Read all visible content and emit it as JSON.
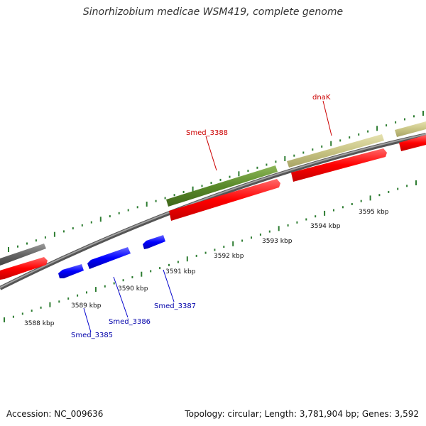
{
  "title": "Sinorhizobium medicae WSM419, complete genome",
  "footer": {
    "accession": "Accession: NC_009636",
    "topology": "Topology: circular; Length: 3,781,904 bp; Genes: 3,592"
  },
  "colors": {
    "backbone": "#777777",
    "tick": "#2e7d32",
    "cds_red": "#ff0000",
    "cds_blue": "#0000ff",
    "gene_olive": "#5a8a2a",
    "gene_khaki": "#c8c484",
    "gene_gray": "#666666",
    "label_red": "#cc0000",
    "label_blue": "#0000aa"
  },
  "kbp_labels": [
    "3588 kbp",
    "3589 kbp",
    "3590 kbp",
    "3591 kbp",
    "3592 kbp",
    "3593 kbp",
    "3594 kbp",
    "3595 kbp"
  ],
  "gene_labels": {
    "smed_3385": "Smed_3385",
    "smed_3386": "Smed_3386",
    "smed_3387": "Smed_3387",
    "smed_3388": "Smed_3388",
    "dnak": "dnaK"
  }
}
